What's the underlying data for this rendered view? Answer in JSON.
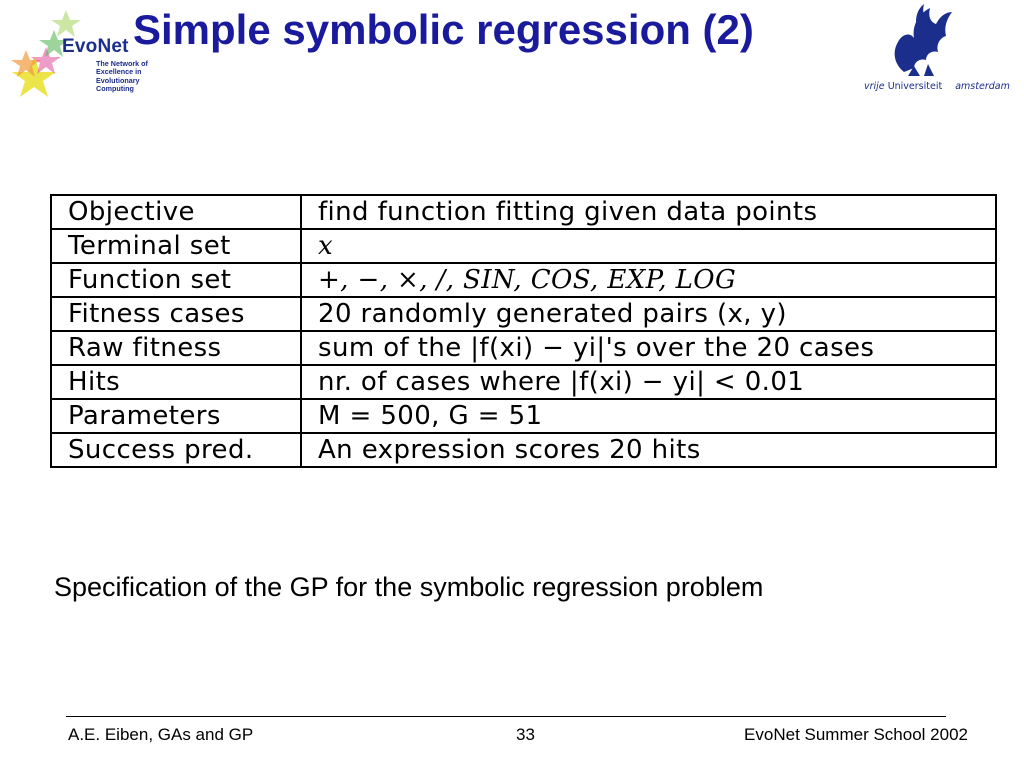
{
  "header": {
    "title": "Simple symbolic regression (2)",
    "left_logo": {
      "icon": "evonet-star-logo",
      "name": "EvoNet",
      "tagline": "The Network of\nExcellence in\nEvolutionary\nComputing"
    },
    "right_logo": {
      "icon": "vu-griffin-logo",
      "wordmark_vrije": "vrije",
      "wordmark_universiteit": "Universiteit",
      "wordmark_amsterdam": "amsterdam"
    }
  },
  "table": {
    "rows": [
      {
        "parameter": "Objective",
        "value": "find function fitting given data points"
      },
      {
        "parameter": "Terminal set",
        "value": "x"
      },
      {
        "parameter": "Function set",
        "value": "+, −, ×, /, SIN, COS, EXP, LOG"
      },
      {
        "parameter": "Fitness cases",
        "value": "20 randomly generated pairs (x, y)"
      },
      {
        "parameter": "Raw fitness",
        "value": "sum of the |f(xi) − yi|'s over the 20 cases"
      },
      {
        "parameter": "Hits",
        "value": "nr. of cases where |f(xi) − yi| < 0.01"
      },
      {
        "parameter": "Parameters",
        "value": "M = 500, G = 51"
      },
      {
        "parameter": "Success pred.",
        "value": "An expression scores 20 hits"
      }
    ]
  },
  "caption": "Specification of the GP for the symbolic regression problem",
  "footer": {
    "left": "A.E. Eiben, GAs and GP",
    "page_number": "33",
    "right": "EvoNet Summer School 2002"
  },
  "colors": {
    "title": "#1a1a9c",
    "logo_blue": "#1b2e8c",
    "star_colors": [
      "#e8e02a",
      "#f29a3a",
      "#e04a9a",
      "#4ab04a"
    ]
  }
}
